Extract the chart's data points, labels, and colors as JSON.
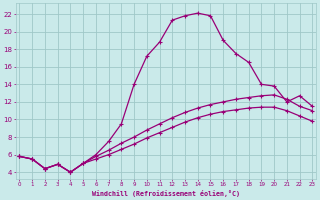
{
  "xlabel": "Windchill (Refroidissement éolien,°C)",
  "background_color": "#caeaea",
  "grid_color": "#a0c8c8",
  "line_color": "#990077",
  "x_ticks": [
    0,
    1,
    2,
    3,
    4,
    5,
    6,
    7,
    8,
    9,
    10,
    11,
    12,
    13,
    14,
    15,
    16,
    17,
    18,
    19,
    20,
    21,
    22,
    23
  ],
  "y_ticks": [
    4,
    6,
    8,
    10,
    12,
    14,
    16,
    18,
    20,
    22
  ],
  "xlim": [
    -0.3,
    23.3
  ],
  "ylim": [
    3.2,
    23.2
  ],
  "line1_x": [
    0,
    1,
    2,
    3,
    4,
    5,
    6,
    7,
    8,
    9,
    10,
    11,
    12,
    13,
    14,
    15,
    16,
    17,
    18,
    19,
    20,
    21,
    22,
    23
  ],
  "line1_y": [
    5.8,
    5.5,
    4.4,
    4.9,
    4.0,
    5.0,
    6.0,
    7.5,
    9.5,
    14.0,
    17.2,
    18.8,
    21.3,
    21.8,
    22.1,
    21.8,
    19.0,
    17.5,
    16.5,
    14.0,
    13.8,
    12.0,
    12.7,
    11.5
  ],
  "line2_x": [
    0,
    1,
    2,
    3,
    4,
    5,
    6,
    7,
    8,
    9,
    10,
    11,
    12,
    13,
    14,
    15,
    16,
    17,
    18,
    19,
    20,
    21,
    22,
    23
  ],
  "line2_y": [
    5.8,
    5.5,
    4.4,
    4.9,
    4.0,
    5.0,
    5.8,
    6.5,
    7.3,
    8.0,
    8.8,
    9.5,
    10.2,
    10.8,
    11.3,
    11.7,
    12.0,
    12.3,
    12.5,
    12.7,
    12.8,
    12.3,
    11.5,
    11.0
  ],
  "line3_x": [
    0,
    1,
    2,
    3,
    4,
    5,
    6,
    7,
    8,
    9,
    10,
    11,
    12,
    13,
    14,
    15,
    16,
    17,
    18,
    19,
    20,
    21,
    22,
    23
  ],
  "line3_y": [
    5.8,
    5.5,
    4.4,
    4.9,
    4.0,
    5.0,
    5.5,
    6.0,
    6.6,
    7.2,
    7.9,
    8.5,
    9.1,
    9.7,
    10.2,
    10.6,
    10.9,
    11.1,
    11.3,
    11.4,
    11.4,
    11.0,
    10.4,
    9.8
  ]
}
